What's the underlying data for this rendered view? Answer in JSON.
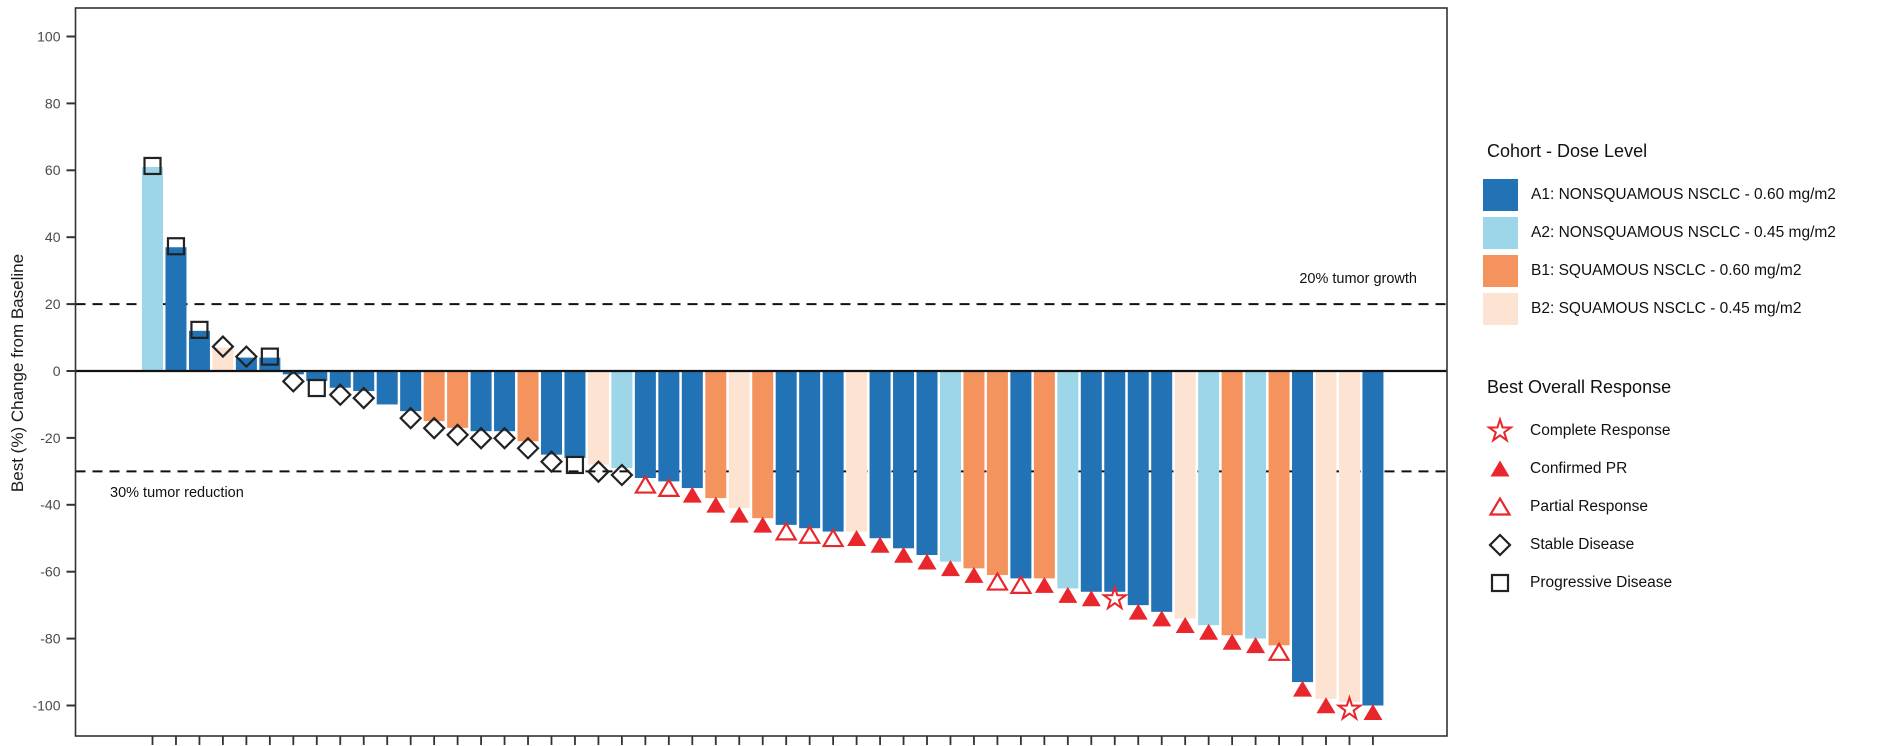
{
  "figure": {
    "background": "#ffffff",
    "y_axis_label": "Best (%) Change from Baseline"
  },
  "annotations": {
    "growth_label": "20% tumor growth",
    "reduction_label": "30% tumor reduction"
  },
  "legend": {
    "cohort_title": "Cohort - Dose Level",
    "cohort_items": [
      {
        "id": "A1",
        "label": "A1: NONSQUAMOUS NSCLC - 0.60 mg/m2",
        "color": "#2272b6"
      },
      {
        "id": "A2",
        "label": "A2: NONSQUAMOUS NSCLC - 0.45 mg/m2",
        "color": "#9cd6e8"
      },
      {
        "id": "B1",
        "label": "B1: SQUAMOUS NSCLC - 0.60 mg/m2",
        "color": "#f5935f"
      },
      {
        "id": "B2",
        "label": "B2: SQUAMOUS NSCLC - 0.45 mg/m2",
        "color": "#fce3d2"
      }
    ],
    "response_title": "Best Overall Response",
    "response_items": [
      {
        "id": "CR",
        "label": "Complete Response",
        "marker": "star-open",
        "color": "#e8262b"
      },
      {
        "id": "CPR",
        "label": "Confirmed PR",
        "marker": "triangle-filled",
        "color": "#e8262b"
      },
      {
        "id": "PR",
        "label": "Partial Response",
        "marker": "triangle-open",
        "color": "#e8262b"
      },
      {
        "id": "SD",
        "label": "Stable Disease",
        "marker": "diamond-open",
        "color": "#222222"
      },
      {
        "id": "PD",
        "label": "Progressive Disease",
        "marker": "square-open",
        "color": "#222222"
      }
    ]
  },
  "chart_data": {
    "type": "bar",
    "subtype": "waterfall",
    "title": "",
    "xlabel": "",
    "ylabel": "Best (%) Change from Baseline",
    "ylim": [
      -109,
      108.5
    ],
    "yticks": [
      100,
      80,
      60,
      40,
      20,
      0,
      -20,
      -40,
      -60,
      -80,
      -100
    ],
    "x_ticks": "one unlabeled tick per patient",
    "grid": false,
    "legend_position": "right",
    "reference_lines": [
      {
        "value": 20,
        "style": "dashed",
        "label": "20% tumor growth"
      },
      {
        "value": 0,
        "style": "solid",
        "label": ""
      },
      {
        "value": -30,
        "style": "dashed",
        "label": "30% tumor reduction"
      }
    ],
    "bars": [
      {
        "value": 61,
        "cohort": "A2",
        "response": "PD"
      },
      {
        "value": 37,
        "cohort": "A1",
        "response": "PD"
      },
      {
        "value": 12,
        "cohort": "A1",
        "response": "PD"
      },
      {
        "value": 7,
        "cohort": "B2",
        "response": "SD"
      },
      {
        "value": 4,
        "cohort": "A1",
        "response": "SD"
      },
      {
        "value": 4,
        "cohort": "A1",
        "response": "PD"
      },
      {
        "value": -1,
        "cohort": "A1",
        "response": "SD"
      },
      {
        "value": -3,
        "cohort": "A1",
        "response": "PD"
      },
      {
        "value": -5,
        "cohort": "A1",
        "response": "SD"
      },
      {
        "value": -6,
        "cohort": "A1",
        "response": "SD"
      },
      {
        "value": -10,
        "cohort": "A1",
        "response": null
      },
      {
        "value": -12,
        "cohort": "A1",
        "response": "SD"
      },
      {
        "value": -15,
        "cohort": "B1",
        "response": "SD"
      },
      {
        "value": -17,
        "cohort": "B1",
        "response": "SD"
      },
      {
        "value": -18,
        "cohort": "A1",
        "response": "SD"
      },
      {
        "value": -18,
        "cohort": "A1",
        "response": "SD"
      },
      {
        "value": -21,
        "cohort": "B1",
        "response": "SD"
      },
      {
        "value": -25,
        "cohort": "A1",
        "response": "SD"
      },
      {
        "value": -26,
        "cohort": "A1",
        "response": "PD"
      },
      {
        "value": -28,
        "cohort": "B2",
        "response": "SD"
      },
      {
        "value": -29,
        "cohort": "A2",
        "response": "SD"
      },
      {
        "value": -32,
        "cohort": "A1",
        "response": "PR"
      },
      {
        "value": -33,
        "cohort": "A1",
        "response": "PR"
      },
      {
        "value": -35,
        "cohort": "A1",
        "response": "CPR"
      },
      {
        "value": -38,
        "cohort": "B1",
        "response": "CPR"
      },
      {
        "value": -41,
        "cohort": "B2",
        "response": "CPR"
      },
      {
        "value": -44,
        "cohort": "B1",
        "response": "CPR"
      },
      {
        "value": -46,
        "cohort": "A1",
        "response": "PR"
      },
      {
        "value": -47,
        "cohort": "A1",
        "response": "PR"
      },
      {
        "value": -48,
        "cohort": "A1",
        "response": "PR"
      },
      {
        "value": -48,
        "cohort": "B2",
        "response": "CPR"
      },
      {
        "value": -50,
        "cohort": "A1",
        "response": "CPR"
      },
      {
        "value": -53,
        "cohort": "A1",
        "response": "CPR"
      },
      {
        "value": -55,
        "cohort": "A1",
        "response": "CPR"
      },
      {
        "value": -57,
        "cohort": "A2",
        "response": "CPR"
      },
      {
        "value": -59,
        "cohort": "B1",
        "response": "CPR"
      },
      {
        "value": -61,
        "cohort": "B1",
        "response": "PR"
      },
      {
        "value": -62,
        "cohort": "A1",
        "response": "PR"
      },
      {
        "value": -62,
        "cohort": "B1",
        "response": "CPR"
      },
      {
        "value": -65,
        "cohort": "A2",
        "response": "CPR"
      },
      {
        "value": -66,
        "cohort": "A1",
        "response": "CPR"
      },
      {
        "value": -66,
        "cohort": "A1",
        "response": "CR"
      },
      {
        "value": -70,
        "cohort": "A1",
        "response": "CPR"
      },
      {
        "value": -72,
        "cohort": "A1",
        "response": "CPR"
      },
      {
        "value": -74,
        "cohort": "B2",
        "response": "CPR"
      },
      {
        "value": -76,
        "cohort": "A2",
        "response": "CPR"
      },
      {
        "value": -79,
        "cohort": "B1",
        "response": "CPR"
      },
      {
        "value": -80,
        "cohort": "A2",
        "response": "CPR"
      },
      {
        "value": -82,
        "cohort": "B1",
        "response": "PR"
      },
      {
        "value": -93,
        "cohort": "A1",
        "response": "CPR"
      },
      {
        "value": -98,
        "cohort": "B2",
        "response": "CPR"
      },
      {
        "value": -99,
        "cohort": "B2",
        "response": "CR"
      },
      {
        "value": -100,
        "cohort": "A1",
        "response": "CPR"
      }
    ]
  },
  "colors": {
    "A1": "#2272b6",
    "A2": "#9cd6e8",
    "B1": "#f5935f",
    "B2": "#fce3d2",
    "response_red": "#e8262b",
    "marker_dark": "#222222",
    "axis_line": "#333333",
    "tick_label": "#4a4a4a",
    "reference_line": "#111111"
  }
}
